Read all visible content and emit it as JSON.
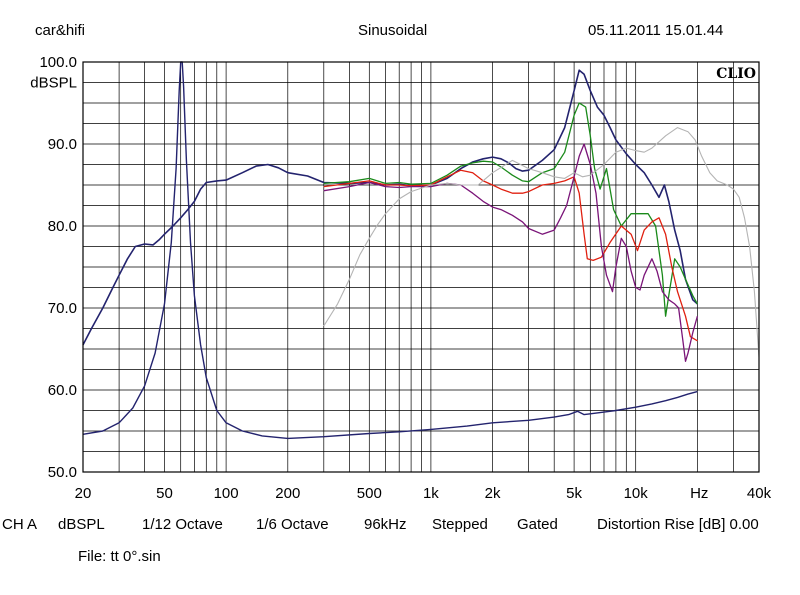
{
  "header": {
    "left": "car&hifi",
    "center": "Sinusoidal",
    "right": "05.11.2011 15.01.44"
  },
  "footer": {
    "info": [
      "CH A",
      "dBSPL",
      "1/12 Octave",
      "1/6 Octave",
      "96kHz",
      "Stepped",
      "Gated",
      "Distortion Rise [dB] 0.00"
    ],
    "file_label": "File:",
    "file_name": "tt 0°.sin"
  },
  "logo_text": "CLIO",
  "colors": {
    "navy": "#23236e",
    "green": "#1a8a1a",
    "red": "#e02010",
    "purple": "#7a1478",
    "gray": "#b4b4b4"
  },
  "chart_data": {
    "type": "line",
    "x_scale": "log",
    "xlim": [
      20,
      40000
    ],
    "ylim": [
      50,
      100
    ],
    "ylabel": "dBSPL",
    "xlabel": "Hz",
    "grid": true,
    "x_ticks": [
      {
        "v": 20,
        "label": "20"
      },
      {
        "v": 50,
        "label": "50"
      },
      {
        "v": 100,
        "label": "100"
      },
      {
        "v": 200,
        "label": "200"
      },
      {
        "v": 500,
        "label": "500"
      },
      {
        "v": 1000,
        "label": "1k"
      },
      {
        "v": 2000,
        "label": "2k"
      },
      {
        "v": 5000,
        "label": "5k"
      },
      {
        "v": 10000,
        "label": "10k"
      },
      {
        "v": 40000,
        "label": "40k"
      }
    ],
    "y_ticks": [
      {
        "v": 100,
        "label": "100.0"
      },
      {
        "v": 90,
        "label": "90.0"
      },
      {
        "v": 80,
        "label": "80.0"
      },
      {
        "v": 70,
        "label": "70.0"
      },
      {
        "v": 60,
        "label": "60.0"
      },
      {
        "v": 50,
        "label": "50.0"
      }
    ],
    "series": [
      {
        "color": "navy",
        "width": 1.6,
        "points": [
          [
            20,
            65.5
          ],
          [
            22,
            67.5
          ],
          [
            25,
            70
          ],
          [
            28,
            72.5
          ],
          [
            30,
            74
          ],
          [
            33,
            76
          ],
          [
            36,
            77.5
          ],
          [
            40,
            77.8
          ],
          [
            44,
            77.7
          ],
          [
            47,
            78.3
          ],
          [
            50,
            79
          ],
          [
            55,
            80
          ],
          [
            60,
            81
          ],
          [
            65,
            82
          ],
          [
            70,
            83
          ],
          [
            75,
            84.5
          ],
          [
            80,
            85.3
          ],
          [
            90,
            85.5
          ],
          [
            100,
            85.6
          ],
          [
            120,
            86.5
          ],
          [
            140,
            87.3
          ],
          [
            160,
            87.5
          ],
          [
            180,
            87.1
          ],
          [
            200,
            86.5
          ],
          [
            250,
            86.1
          ],
          [
            300,
            85.3
          ],
          [
            400,
            85.2
          ],
          [
            500,
            85.3
          ],
          [
            600,
            85.0
          ],
          [
            700,
            85.1
          ],
          [
            800,
            84.9
          ],
          [
            1000,
            85.0
          ],
          [
            1200,
            85.8
          ],
          [
            1400,
            87.0
          ],
          [
            1600,
            87.8
          ],
          [
            1800,
            88.2
          ],
          [
            2000,
            88.4
          ],
          [
            2200,
            88.2
          ],
          [
            2400,
            87.7
          ],
          [
            2600,
            87.0
          ],
          [
            2800,
            86.7
          ],
          [
            3000,
            86.8
          ],
          [
            3500,
            88.0
          ],
          [
            4000,
            89.3
          ],
          [
            4500,
            92.0
          ],
          [
            5000,
            96.5
          ],
          [
            5300,
            99.0
          ],
          [
            5600,
            98.5
          ],
          [
            6000,
            96.5
          ],
          [
            6500,
            94.5
          ],
          [
            7000,
            93.5
          ],
          [
            7500,
            92.0
          ],
          [
            8000,
            90.5
          ],
          [
            9000,
            88.8
          ],
          [
            10000,
            87.5
          ],
          [
            11000,
            86.5
          ],
          [
            12000,
            85.0
          ],
          [
            13000,
            83.5
          ],
          [
            13800,
            85.0
          ],
          [
            14500,
            83.0
          ],
          [
            15500,
            79.5
          ],
          [
            16500,
            77.0
          ],
          [
            17500,
            73.5
          ],
          [
            19000,
            71.0
          ],
          [
            20000,
            70.5
          ]
        ]
      },
      {
        "color": "green",
        "width": 1.3,
        "points": [
          [
            300,
            85.2
          ],
          [
            400,
            85.4
          ],
          [
            500,
            85.8
          ],
          [
            600,
            85.2
          ],
          [
            700,
            85.3
          ],
          [
            800,
            85.1
          ],
          [
            1000,
            85.2
          ],
          [
            1200,
            86.2
          ],
          [
            1400,
            87.3
          ],
          [
            1600,
            87.7
          ],
          [
            1800,
            87.9
          ],
          [
            2000,
            87.8
          ],
          [
            2200,
            87.2
          ],
          [
            2500,
            86.2
          ],
          [
            2800,
            85.5
          ],
          [
            3000,
            85.4
          ],
          [
            3500,
            86.5
          ],
          [
            4000,
            87.0
          ],
          [
            4500,
            89.0
          ],
          [
            5000,
            93.5
          ],
          [
            5300,
            95.0
          ],
          [
            5700,
            94.5
          ],
          [
            6000,
            91.0
          ],
          [
            6300,
            87.0
          ],
          [
            6700,
            84.5
          ],
          [
            7200,
            87.0
          ],
          [
            7800,
            82.0
          ],
          [
            8500,
            80.0
          ],
          [
            9500,
            81.5
          ],
          [
            10500,
            81.5
          ],
          [
            11500,
            81.5
          ],
          [
            12500,
            80.0
          ],
          [
            13500,
            74.0
          ],
          [
            14000,
            69.0
          ],
          [
            14600,
            72.0
          ],
          [
            15500,
            76.0
          ],
          [
            16500,
            75.0
          ],
          [
            17500,
            73.5
          ],
          [
            19000,
            71.5
          ],
          [
            20000,
            70.5
          ]
        ]
      },
      {
        "color": "red",
        "width": 1.3,
        "points": [
          [
            300,
            84.8
          ],
          [
            400,
            85.2
          ],
          [
            500,
            85.5
          ],
          [
            600,
            85.0
          ],
          [
            700,
            85.0
          ],
          [
            800,
            84.9
          ],
          [
            1000,
            85.0
          ],
          [
            1200,
            86.0
          ],
          [
            1400,
            86.8
          ],
          [
            1600,
            86.5
          ],
          [
            1800,
            85.5
          ],
          [
            2000,
            85.0
          ],
          [
            2200,
            84.5
          ],
          [
            2500,
            84.0
          ],
          [
            2800,
            84.0
          ],
          [
            3000,
            84.2
          ],
          [
            3500,
            85.0
          ],
          [
            4000,
            85.2
          ],
          [
            4500,
            85.5
          ],
          [
            5000,
            86.0
          ],
          [
            5300,
            84.0
          ],
          [
            5600,
            79.0
          ],
          [
            5800,
            76.0
          ],
          [
            6200,
            75.8
          ],
          [
            6800,
            76.2
          ],
          [
            7500,
            78.0
          ],
          [
            8500,
            80.0
          ],
          [
            9500,
            79.0
          ],
          [
            10200,
            77.0
          ],
          [
            11000,
            79.5
          ],
          [
            12000,
            80.5
          ],
          [
            13000,
            81.0
          ],
          [
            14000,
            79.0
          ],
          [
            15000,
            75.0
          ],
          [
            16000,
            72.0
          ],
          [
            17500,
            69.0
          ],
          [
            18500,
            66.5
          ],
          [
            20000,
            66.0
          ]
        ]
      },
      {
        "color": "purple",
        "width": 1.3,
        "points": [
          [
            300,
            84.3
          ],
          [
            400,
            84.8
          ],
          [
            500,
            85.3
          ],
          [
            600,
            84.8
          ],
          [
            700,
            84.7
          ],
          [
            800,
            84.8
          ],
          [
            1000,
            84.8
          ],
          [
            1200,
            85.2
          ],
          [
            1400,
            85.0
          ],
          [
            1600,
            84.0
          ],
          [
            1800,
            83.0
          ],
          [
            2000,
            82.3
          ],
          [
            2200,
            82.0
          ],
          [
            2500,
            81.3
          ],
          [
            2800,
            80.5
          ],
          [
            3000,
            79.7
          ],
          [
            3500,
            79.0
          ],
          [
            4000,
            79.5
          ],
          [
            4300,
            81.0
          ],
          [
            4600,
            82.5
          ],
          [
            5000,
            86.0
          ],
          [
            5300,
            88.5
          ],
          [
            5600,
            90.0
          ],
          [
            6000,
            87.5
          ],
          [
            6400,
            84.0
          ],
          [
            6800,
            77.5
          ],
          [
            7200,
            74.0
          ],
          [
            7700,
            72.0
          ],
          [
            8000,
            75.0
          ],
          [
            8500,
            78.5
          ],
          [
            9000,
            77.5
          ],
          [
            9500,
            74.5
          ],
          [
            10000,
            72.5
          ],
          [
            10500,
            72.2
          ],
          [
            11000,
            74.0
          ],
          [
            12000,
            76.0
          ],
          [
            12700,
            74.5
          ],
          [
            13500,
            72.0
          ],
          [
            14500,
            71.0
          ],
          [
            15500,
            70.5
          ],
          [
            16200,
            70.0
          ],
          [
            17000,
            66.0
          ],
          [
            17500,
            63.5
          ],
          [
            18000,
            64.5
          ],
          [
            19000,
            67.0
          ],
          [
            20000,
            69.0
          ]
        ]
      },
      {
        "color": "gray",
        "width": 1.1,
        "points": [
          [
            300,
            67.8
          ],
          [
            350,
            70.5
          ],
          [
            400,
            73.5
          ],
          [
            450,
            76.5
          ],
          [
            500,
            78.5
          ],
          [
            550,
            80.2
          ],
          [
            600,
            81.5
          ],
          [
            700,
            83.3
          ],
          [
            800,
            84.2
          ],
          [
            1000,
            85.0
          ],
          [
            1200,
            85.2
          ],
          [
            1400,
            85.0
          ],
          [
            1700,
            85.0
          ],
          [
            2000,
            86.5
          ],
          [
            2500,
            88.0
          ],
          [
            3000,
            87.0
          ],
          [
            3500,
            86.5
          ],
          [
            4000,
            86.0
          ],
          [
            4500,
            85.8
          ],
          [
            5000,
            86.5
          ],
          [
            5500,
            86.0
          ],
          [
            6000,
            86.2
          ],
          [
            7000,
            87.5
          ],
          [
            8000,
            89.0
          ],
          [
            9000,
            89.5
          ],
          [
            10000,
            89.2
          ],
          [
            11000,
            89.0
          ],
          [
            12000,
            89.5
          ],
          [
            14000,
            91.0
          ],
          [
            16000,
            92.0
          ],
          [
            18000,
            91.5
          ],
          [
            19500,
            90.5
          ],
          [
            21000,
            88.5
          ],
          [
            23000,
            86.5
          ],
          [
            25000,
            85.5
          ],
          [
            28000,
            85.0
          ],
          [
            30000,
            84.5
          ],
          [
            32000,
            83.5
          ],
          [
            34000,
            81.0
          ],
          [
            36000,
            77.5
          ],
          [
            38000,
            72.0
          ],
          [
            40000,
            64.0
          ]
        ]
      },
      {
        "color": "navy",
        "width": 1.4,
        "points": [
          [
            20,
            54.6
          ],
          [
            25,
            55.0
          ],
          [
            30,
            56.0
          ],
          [
            35,
            57.8
          ],
          [
            40,
            60.5
          ],
          [
            45,
            64.5
          ],
          [
            50,
            70.5
          ],
          [
            54,
            78.0
          ],
          [
            57,
            87.0
          ],
          [
            59,
            96.5
          ],
          [
            60,
            100
          ],
          [
            61,
            100
          ],
          [
            62,
            97.0
          ],
          [
            64,
            88.0
          ],
          [
            67,
            78.0
          ],
          [
            70,
            71.5
          ],
          [
            75,
            65.5
          ],
          [
            80,
            61.5
          ],
          [
            90,
            57.5
          ],
          [
            100,
            56.0
          ],
          [
            120,
            55.0
          ],
          [
            150,
            54.4
          ],
          [
            200,
            54.1
          ],
          [
            300,
            54.3
          ],
          [
            500,
            54.7
          ],
          [
            700,
            54.9
          ],
          [
            1000,
            55.2
          ],
          [
            1500,
            55.6
          ],
          [
            2000,
            56.0
          ],
          [
            3000,
            56.3
          ],
          [
            4000,
            56.7
          ],
          [
            4700,
            57.0
          ],
          [
            5200,
            57.4
          ],
          [
            5600,
            57.0
          ],
          [
            6000,
            57.1
          ],
          [
            7000,
            57.3
          ],
          [
            8000,
            57.5
          ],
          [
            10000,
            57.9
          ],
          [
            12000,
            58.3
          ],
          [
            14000,
            58.7
          ],
          [
            16000,
            59.1
          ],
          [
            18000,
            59.5
          ],
          [
            20000,
            59.8
          ]
        ]
      }
    ]
  }
}
